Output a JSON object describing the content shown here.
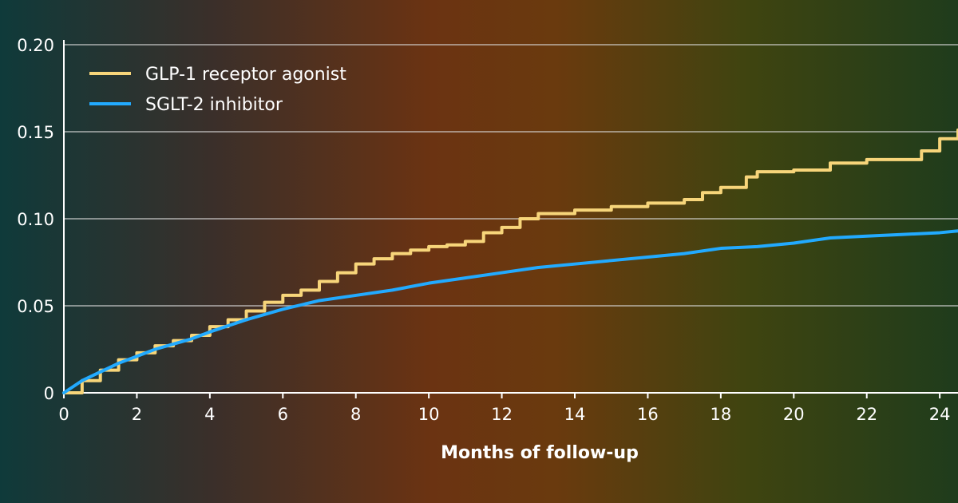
{
  "chart_data": {
    "type": "line",
    "title": "",
    "xlabel": "Months of follow-up",
    "ylabel": "",
    "xlim": [
      0,
      24.5
    ],
    "ylim": [
      0,
      0.2
    ],
    "x_ticks": [
      0,
      2,
      4,
      6,
      8,
      10,
      12,
      14,
      16,
      18,
      20,
      22,
      24
    ],
    "y_ticks": [
      0,
      0.05,
      0.1,
      0.15,
      0.2
    ],
    "y_tick_labels": [
      "0",
      "0.05",
      "0.10",
      "0.15",
      "0.20"
    ],
    "grid": "horizontal",
    "legend_position": "top-left",
    "series": [
      {
        "name": "GLP-1 receptor agonist",
        "color": "#f7d57a",
        "step": true,
        "x": [
          0,
          0.5,
          1,
          1.5,
          2,
          2.5,
          3,
          3.5,
          4,
          4.5,
          5,
          5.5,
          6,
          6.5,
          7,
          7.5,
          8,
          8.5,
          9,
          9.5,
          10,
          10.5,
          11,
          11.5,
          12,
          12.5,
          13,
          14,
          15,
          16,
          17,
          17.5,
          18,
          18.7,
          19,
          20,
          21,
          22,
          23,
          23.5,
          24,
          24.5
        ],
        "y": [
          0,
          0.007,
          0.013,
          0.019,
          0.023,
          0.027,
          0.03,
          0.033,
          0.038,
          0.042,
          0.047,
          0.052,
          0.056,
          0.059,
          0.064,
          0.069,
          0.074,
          0.077,
          0.08,
          0.082,
          0.084,
          0.085,
          0.087,
          0.092,
          0.095,
          0.1,
          0.103,
          0.105,
          0.107,
          0.109,
          0.111,
          0.115,
          0.118,
          0.124,
          0.127,
          0.128,
          0.132,
          0.134,
          0.134,
          0.139,
          0.146,
          0.151
        ]
      },
      {
        "name": "SGLT-2 inhibitor",
        "color": "#22aaff",
        "step": false,
        "x": [
          0,
          0.5,
          1,
          1.5,
          2,
          2.5,
          3,
          3.5,
          4,
          5,
          6,
          7,
          8,
          9,
          10,
          11,
          12,
          13,
          14,
          15,
          16,
          17,
          18,
          19,
          20,
          21,
          22,
          23,
          24,
          24.5
        ],
        "y": [
          0,
          0.007,
          0.012,
          0.017,
          0.021,
          0.025,
          0.028,
          0.031,
          0.035,
          0.042,
          0.048,
          0.053,
          0.056,
          0.059,
          0.063,
          0.066,
          0.069,
          0.072,
          0.074,
          0.076,
          0.078,
          0.08,
          0.083,
          0.084,
          0.086,
          0.089,
          0.09,
          0.091,
          0.092,
          0.093
        ]
      }
    ]
  }
}
